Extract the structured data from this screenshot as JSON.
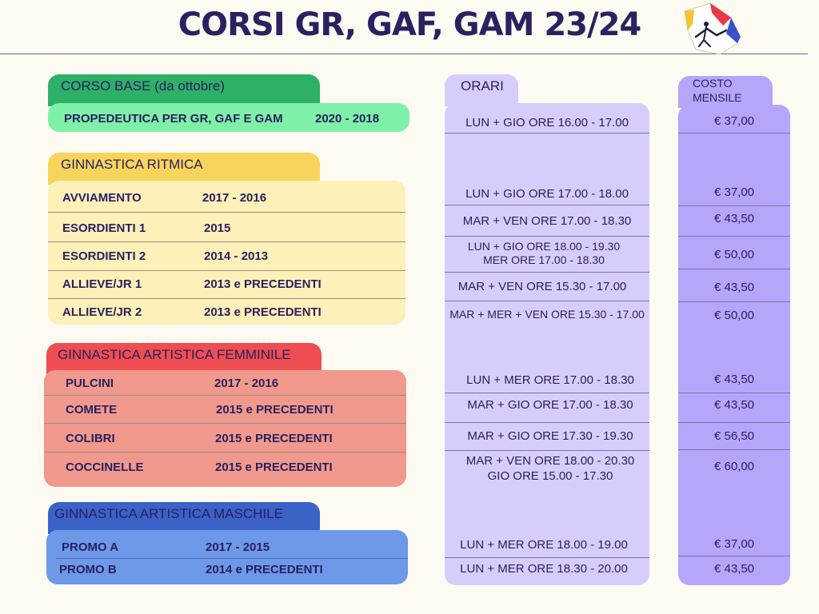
{
  "title": "CORSI GR, GAF, GAM 23/24",
  "colors": {
    "background": "#fdfaf2",
    "base_tab": "#2fb068",
    "base_panel": "#7ff0a8",
    "ritmica_tab": "#f7d55c",
    "ritmica_panel": "#fdf0b8",
    "gaf_tab": "#ee4e52",
    "gaf_panel": "#f0998c",
    "gam_tab": "#3a62c7",
    "gam_panel": "#6e98e8",
    "orari": "#d6cdfc",
    "costo": "#b7a5fb"
  },
  "sections": {
    "base": {
      "header": "CORSO BASE (da ottobre)",
      "rows": [
        {
          "name": "PROPEDEUTICA PER GR, GAF E GAM",
          "years": "2020 - 2018"
        }
      ]
    },
    "ritmica": {
      "header": "GINNASTICA RITMICA",
      "rows": [
        {
          "name": "AVVIAMENTO",
          "years": "2017 - 2016"
        },
        {
          "name": "ESORDIENTI 1",
          "years": "2015"
        },
        {
          "name": "ESORDIENTI 2",
          "years": "2014 - 2013"
        },
        {
          "name": "ALLIEVE/JR 1",
          "years": "2013 e PRECEDENTI"
        },
        {
          "name": "ALLIEVE/JR 2",
          "years": "2013 e PRECEDENTI"
        }
      ]
    },
    "gaf": {
      "header": "GINNASTICA ARTISTICA FEMMINILE",
      "rows": [
        {
          "name": "PULCINI",
          "years": "2017 - 2016"
        },
        {
          "name": "COMETE",
          "years": "2015 e PRECEDENTI"
        },
        {
          "name": "COLIBRI",
          "years": "2015 e PRECEDENTI"
        },
        {
          "name": "COCCINELLE",
          "years": "2015 e PRECEDENTI"
        }
      ]
    },
    "gam": {
      "header": "GINNASTICA ARTISTICA MASCHILE",
      "rows": [
        {
          "name": "PROMO A",
          "years": "2017 - 2015"
        },
        {
          "name": "PROMO B",
          "years": "2014 e PRECEDENTI"
        }
      ]
    }
  },
  "orari": {
    "header": "ORARI",
    "rows": [
      [
        "LUN + GIO ORE 16.00 - 17.00"
      ],
      [
        "LUN + GIO ORE 17.00 - 18.00"
      ],
      [
        "MAR + VEN ORE 17.00 - 18.30"
      ],
      [
        "LUN + GIO ORE 18.00 - 19.30",
        "MER ORE 17.00 - 18.30"
      ],
      [
        "MAR + VEN ORE 15.30 - 17.00"
      ],
      [
        "MAR + MER + VEN ORE 15.30 - 17.00"
      ],
      [
        "LUN + MER ORE 17.00 - 18.30"
      ],
      [
        "MAR + GIO ORE 17.00 - 18.30"
      ],
      [
        "MAR + GIO ORE 17.30 - 19.30"
      ],
      [
        "MAR + VEN ORE 18.00 - 20.30",
        "GIO ORE 15.00 - 17.30"
      ],
      [
        "LUN + MER ORE 18.00 - 19.00"
      ],
      [
        "LUN + MER ORE 18.30 - 20.00"
      ]
    ]
  },
  "costo": {
    "header_line1": "COSTO",
    "header_line2": "MENSILE",
    "values": [
      "€ 37,00",
      "€ 37,00",
      "€ 43,50",
      "€ 50,00",
      "€ 43,50",
      "€ 50,00",
      "€ 43,50",
      "€ 43,50",
      "€ 56,50",
      "€ 60,00",
      "€ 37,00",
      "€ 43,50"
    ]
  }
}
